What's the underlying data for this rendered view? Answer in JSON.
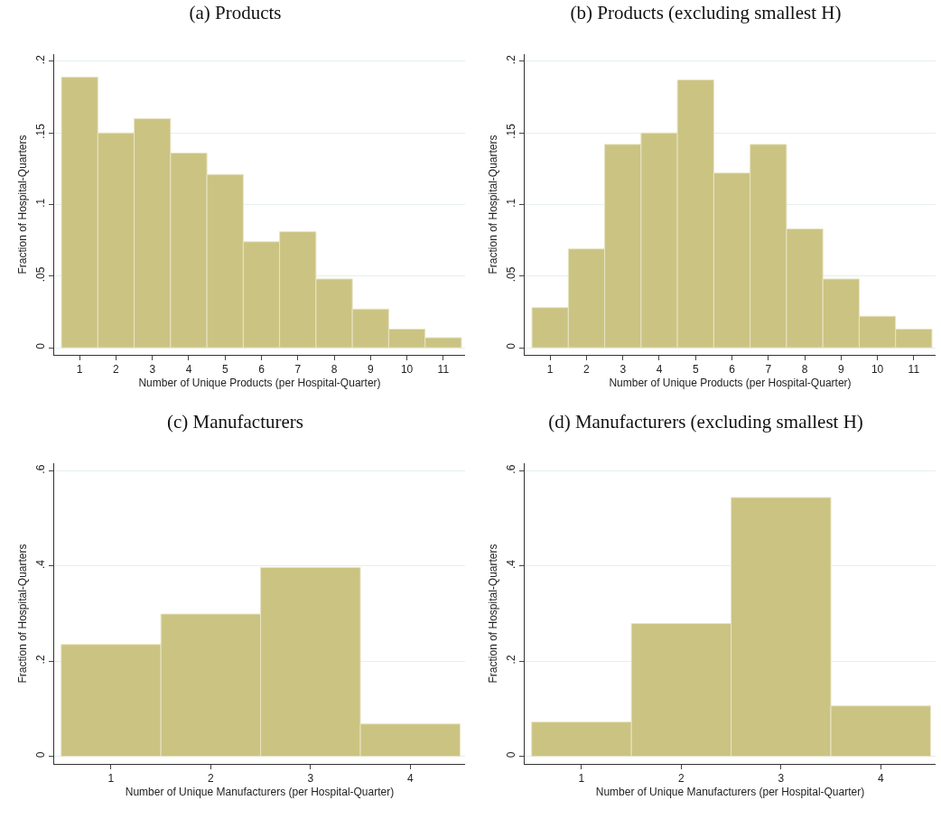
{
  "chart_data": [
    {
      "type": "histogram",
      "title": "(a) Products",
      "xlabel": "Number of Unique Products (per Hospital-Quarter)",
      "ylabel": "Fraction of Hospital-Quarters",
      "bins": [
        0.5,
        1.5,
        2.5,
        3.5,
        4.5,
        5.5,
        6.5,
        7.5,
        8.5,
        9.5,
        10.5,
        11.5
      ],
      "values": [
        0.189,
        0.15,
        0.16,
        0.136,
        0.121,
        0.074,
        0.081,
        0.048,
        0.027,
        0.013,
        0.007
      ],
      "color": "#cbc382",
      "xlim": [
        0.3,
        11.6
      ],
      "xticks": [
        1,
        2,
        3,
        4,
        5,
        6,
        7,
        8,
        9,
        10,
        11
      ],
      "ylim": [
        -0.005,
        0.205
      ],
      "yticks": [
        {
          "value": 0,
          "label": "0"
        },
        {
          "value": 0.05,
          "label": ".05"
        },
        {
          "value": 0.1,
          "label": ".1"
        },
        {
          "value": 0.15,
          "label": ".15"
        },
        {
          "value": 0.2,
          "label": ".2"
        }
      ],
      "grid": "y"
    },
    {
      "type": "histogram",
      "title": "(b) Products (excluding smallest H)",
      "xlabel": "Number of Unique Products (per Hospital-Quarter)",
      "ylabel": "Fraction of Hospital-Quarters",
      "bins": [
        0.5,
        1.5,
        2.5,
        3.5,
        4.5,
        5.5,
        6.5,
        7.5,
        8.5,
        9.5,
        10.5,
        11.5
      ],
      "values": [
        0.028,
        0.069,
        0.142,
        0.15,
        0.187,
        0.122,
        0.142,
        0.083,
        0.048,
        0.022,
        0.013
      ],
      "color": "#cbc382",
      "xlim": [
        0.3,
        11.6
      ],
      "xticks": [
        1,
        2,
        3,
        4,
        5,
        6,
        7,
        8,
        9,
        10,
        11
      ],
      "ylim": [
        -0.005,
        0.205
      ],
      "yticks": [
        {
          "value": 0,
          "label": "0"
        },
        {
          "value": 0.05,
          "label": ".05"
        },
        {
          "value": 0.1,
          "label": ".1"
        },
        {
          "value": 0.15,
          "label": ".15"
        },
        {
          "value": 0.2,
          "label": ".2"
        }
      ],
      "grid": "y"
    },
    {
      "type": "histogram",
      "title": "(c) Manufacturers",
      "xlabel": "Number of Unique Manufacturers (per Hospital-Quarter)",
      "ylabel": "Fraction of Hospital-Quarters",
      "bins": [
        0.5,
        1.5,
        2.5,
        3.5,
        4.5
      ],
      "values": [
        0.235,
        0.299,
        0.397,
        0.068
      ],
      "color": "#cbc382",
      "xlim": [
        0.43,
        4.55
      ],
      "xticks": [
        1,
        2,
        3,
        4
      ],
      "ylim": [
        -0.016,
        0.616
      ],
      "yticks": [
        {
          "value": 0,
          "label": "0"
        },
        {
          "value": 0.2,
          "label": ".2"
        },
        {
          "value": 0.4,
          "label": ".4"
        },
        {
          "value": 0.6,
          "label": ".6"
        }
      ],
      "grid": "y"
    },
    {
      "type": "histogram",
      "title": "(d) Manufacturers (excluding smallest H)",
      "xlabel": "Number of Unique Manufacturers (per Hospital-Quarter)",
      "ylabel": "Fraction of Hospital-Quarters",
      "bins": [
        0.5,
        1.5,
        2.5,
        3.5,
        4.5
      ],
      "values": [
        0.072,
        0.279,
        0.544,
        0.106
      ],
      "color": "#cbc382",
      "xlim": [
        0.43,
        4.55
      ],
      "xticks": [
        1,
        2,
        3,
        4
      ],
      "ylim": [
        -0.016,
        0.616
      ],
      "yticks": [
        {
          "value": 0,
          "label": "0"
        },
        {
          "value": 0.2,
          "label": ".2"
        },
        {
          "value": 0.4,
          "label": ".4"
        },
        {
          "value": 0.6,
          "label": ".6"
        }
      ],
      "grid": "y"
    }
  ]
}
